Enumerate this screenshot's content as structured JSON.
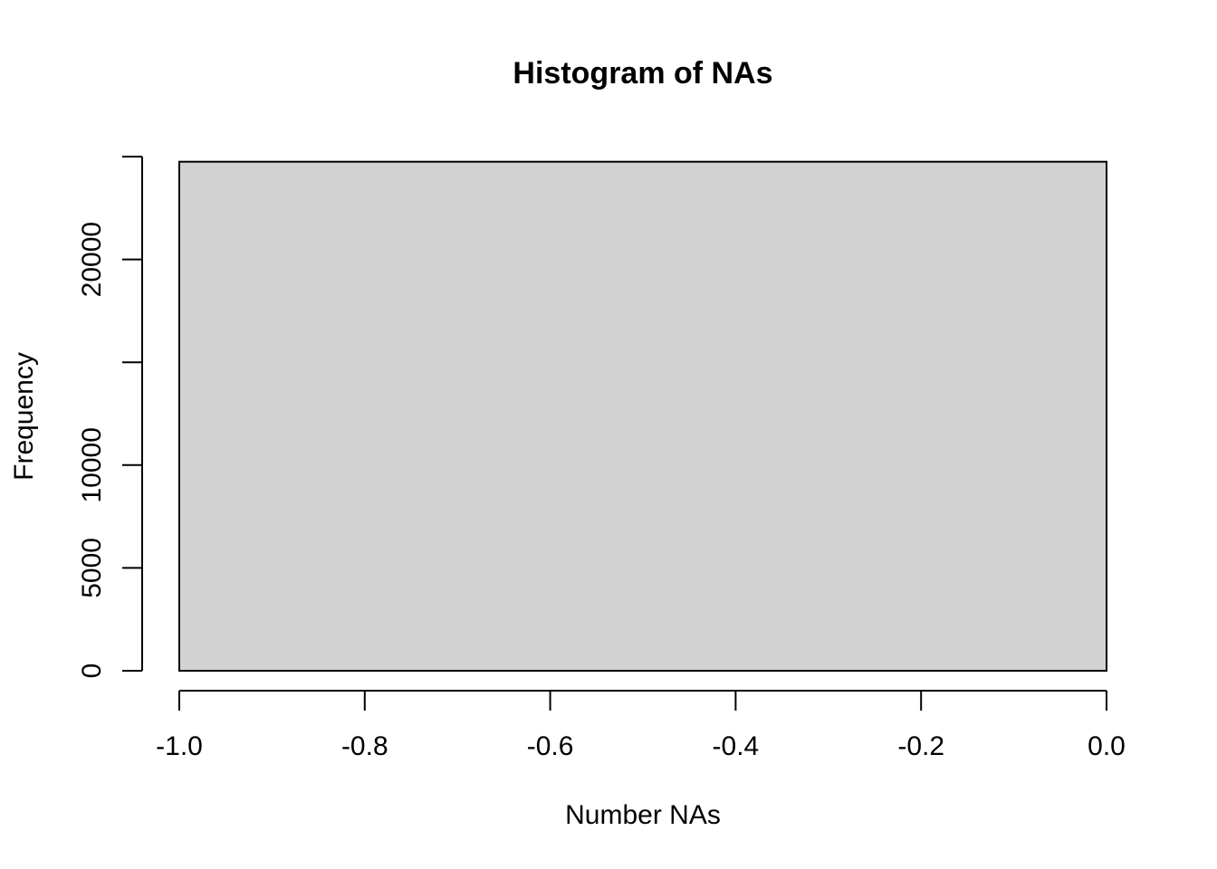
{
  "chart_data": {
    "type": "bar",
    "title": "Histogram of NAs",
    "xlabel": "Number NAs",
    "ylabel": "Frequency",
    "bins": [
      {
        "x0": -1.0,
        "x1": 0.0,
        "count": 24750
      }
    ],
    "xlim": [
      -1.0,
      0.0
    ],
    "ylim": [
      0,
      25000
    ],
    "x_ticks": [
      -1.0,
      -0.8,
      -0.6,
      -0.4,
      -0.2,
      0.0
    ],
    "x_tick_labels": [
      "-1.0",
      "-0.8",
      "-0.6",
      "-0.4",
      "-0.2",
      "0.0"
    ],
    "y_ticks": [
      0,
      5000,
      10000,
      15000,
      20000,
      25000
    ],
    "y_tick_labels": [
      "0",
      "5000",
      "10000",
      "",
      "20000",
      ""
    ],
    "grid": false,
    "legend": "none",
    "colors": {
      "bar_fill": "#d3d3d3",
      "bar_stroke": "#000000",
      "axis": "#000000",
      "background": "#ffffff"
    }
  }
}
